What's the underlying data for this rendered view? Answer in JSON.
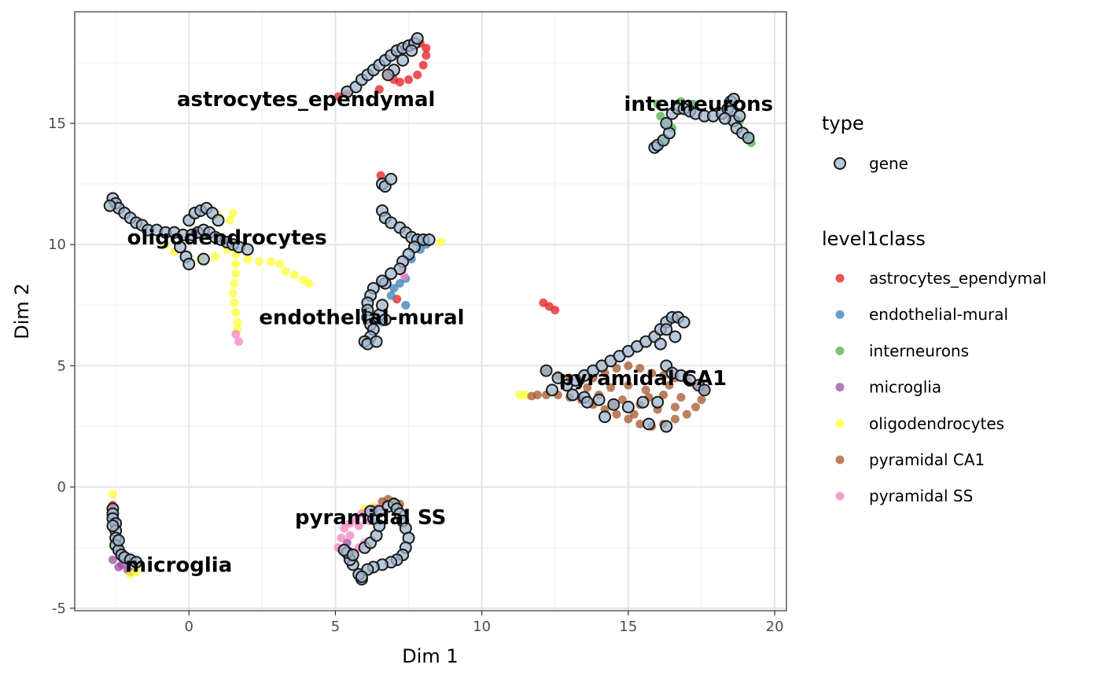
{
  "chart_data": {
    "type": "scatter",
    "xlabel": "Dim 1",
    "ylabel": "Dim 2",
    "xlim": [
      -3.9,
      20.4
    ],
    "ylim": [
      -5.1,
      19.6
    ],
    "x_ticks": [
      0,
      5,
      10,
      15,
      20
    ],
    "y_ticks": [
      -5,
      0,
      5,
      10,
      15
    ],
    "y_tick_labels": [
      "-5",
      "0",
      "5",
      "10",
      "15"
    ],
    "grid": true,
    "legend_position": "right",
    "legend": {
      "type_title": "type",
      "type_entries": [
        {
          "label": "gene",
          "color": "#9FB6CD"
        }
      ],
      "class_title": "level1class",
      "class_entries": [
        {
          "label": "astrocytes_ependymal",
          "color": "#E41A1C"
        },
        {
          "label": "endothelial-mural",
          "color": "#377EB8"
        },
        {
          "label": "interneurons",
          "color": "#4DAF4A"
        },
        {
          "label": "microglia",
          "color": "#984EA3"
        },
        {
          "label": "oligodendrocytes",
          "color": "#FFFF33"
        },
        {
          "label": "pyramidal CA1",
          "color": "#A65628"
        },
        {
          "label": "pyramidal SS",
          "color": "#F781BF"
        }
      ]
    },
    "cluster_labels": [
      {
        "text": "astrocytes_ependymal",
        "x": 4.0,
        "y": 16.0
      },
      {
        "text": "interneurons",
        "x": 17.4,
        "y": 15.8
      },
      {
        "text": "oligodendrocytes",
        "x": 1.3,
        "y": 10.3
      },
      {
        "text": "endothelial-mural",
        "x": 5.9,
        "y": 7.0
      },
      {
        "text": "pyramidal CA1",
        "x": 15.5,
        "y": 4.5
      },
      {
        "text": "pyramidal SS",
        "x": 6.2,
        "y": -1.25
      },
      {
        "text": "microglia",
        "x": -0.35,
        "y": -3.2
      }
    ],
    "cell_series": [
      {
        "name": "astrocytes_ependymal",
        "points": [
          [
            5.1,
            16.1
          ],
          [
            5.4,
            16.2
          ],
          [
            6.5,
            16.4
          ],
          [
            6.8,
            17.0
          ],
          [
            7.0,
            16.8
          ],
          [
            7.2,
            16.7
          ],
          [
            7.5,
            16.8
          ],
          [
            7.8,
            17.0
          ],
          [
            8.0,
            17.4
          ],
          [
            8.1,
            17.8
          ],
          [
            8.1,
            18.1
          ],
          [
            7.9,
            18.3
          ],
          [
            12.1,
            7.6
          ],
          [
            12.3,
            7.45
          ],
          [
            12.5,
            7.3
          ],
          [
            6.55,
            12.85
          ],
          [
            7.1,
            7.75
          ],
          [
            -2.6,
            -0.75
          ]
        ]
      },
      {
        "name": "endothelial-mural",
        "points": [
          [
            7.2,
            8.4
          ],
          [
            7.4,
            8.6
          ],
          [
            6.9,
            7.9
          ],
          [
            7.4,
            7.5
          ],
          [
            7.6,
            9.4
          ],
          [
            7.9,
            9.8
          ],
          [
            8.1,
            10.0
          ],
          [
            6.6,
            6.8
          ],
          [
            7.0,
            8.2
          ]
        ]
      },
      {
        "name": "interneurons",
        "points": [
          [
            16.0,
            15.8
          ],
          [
            16.1,
            15.3
          ],
          [
            16.3,
            15.0
          ],
          [
            16.5,
            14.8
          ],
          [
            16.8,
            15.9
          ],
          [
            17.2,
            15.8
          ],
          [
            18.8,
            15.1
          ],
          [
            19.1,
            14.4
          ],
          [
            19.2,
            14.2
          ],
          [
            16.2,
            14.3
          ]
        ]
      },
      {
        "name": "microglia",
        "points": [
          [
            -2.6,
            -3.0
          ],
          [
            -2.3,
            -3.2
          ],
          [
            -2.1,
            -3.4
          ],
          [
            -2.0,
            -3.5
          ],
          [
            -2.4,
            -3.3
          ],
          [
            5.4,
            -2.3
          ]
        ]
      },
      {
        "name": "oligodendrocytes",
        "points": [
          [
            1.6,
            9.6
          ],
          [
            1.6,
            9.2
          ],
          [
            1.6,
            8.8
          ],
          [
            1.55,
            8.4
          ],
          [
            1.5,
            8.0
          ],
          [
            1.55,
            7.6
          ],
          [
            1.6,
            7.2
          ],
          [
            1.65,
            6.8
          ],
          [
            1.65,
            6.5
          ],
          [
            2.0,
            9.4
          ],
          [
            2.4,
            9.3
          ],
          [
            2.8,
            9.3
          ],
          [
            3.1,
            9.2
          ],
          [
            3.3,
            8.9
          ],
          [
            3.6,
            8.75
          ],
          [
            3.9,
            8.55
          ],
          [
            4.1,
            8.4
          ],
          [
            1.3,
            9.8
          ],
          [
            1.0,
            11.2
          ],
          [
            1.4,
            11.0
          ],
          [
            1.5,
            11.3
          ],
          [
            -0.8,
            10.0
          ],
          [
            -0.5,
            9.7
          ],
          [
            0.4,
            9.4
          ],
          [
            0.9,
            9.5
          ],
          [
            8.6,
            10.1
          ],
          [
            11.3,
            3.8
          ],
          [
            11.5,
            3.8
          ],
          [
            -2.6,
            -0.3
          ],
          [
            -2.0,
            -3.6
          ],
          [
            -1.8,
            -3.5
          ],
          [
            6.0,
            -0.9
          ],
          [
            6.3,
            -0.8
          ]
        ]
      },
      {
        "name": "pyramidal CA1",
        "points": [
          [
            12.2,
            4.8
          ],
          [
            12.6,
            4.6
          ],
          [
            13.0,
            4.5
          ],
          [
            13.4,
            4.4
          ],
          [
            13.8,
            4.5
          ],
          [
            14.2,
            4.7
          ],
          [
            14.6,
            4.9
          ],
          [
            15.0,
            5.0
          ],
          [
            15.4,
            4.9
          ],
          [
            15.8,
            4.7
          ],
          [
            16.2,
            4.6
          ],
          [
            16.6,
            4.5
          ],
          [
            17.0,
            4.4
          ],
          [
            17.4,
            4.2
          ],
          [
            17.6,
            4.0
          ],
          [
            17.5,
            3.6
          ],
          [
            17.3,
            3.3
          ],
          [
            17.0,
            3.0
          ],
          [
            16.6,
            2.8
          ],
          [
            16.2,
            2.6
          ],
          [
            15.8,
            2.5
          ],
          [
            15.4,
            2.6
          ],
          [
            15.0,
            2.8
          ],
          [
            14.6,
            3.0
          ],
          [
            14.2,
            3.2
          ],
          [
            13.8,
            3.4
          ],
          [
            13.4,
            3.6
          ],
          [
            13.0,
            3.7
          ],
          [
            12.6,
            3.8
          ],
          [
            12.2,
            3.8
          ],
          [
            11.9,
            3.8
          ],
          [
            11.7,
            3.75
          ],
          [
            14.4,
            4.1
          ],
          [
            15.0,
            4.2
          ],
          [
            15.6,
            4.0
          ],
          [
            16.2,
            3.8
          ],
          [
            16.8,
            3.7
          ],
          [
            14.8,
            3.6
          ],
          [
            15.4,
            3.4
          ],
          [
            16.0,
            3.2
          ],
          [
            16.6,
            3.3
          ],
          [
            13.6,
            4.1
          ],
          [
            14.0,
            3.8
          ],
          [
            15.2,
            3.0
          ],
          [
            16.4,
            4.2
          ],
          [
            15.7,
            3.7
          ],
          [
            14.5,
            3.4
          ],
          [
            6.8,
            -0.5
          ],
          [
            7.0,
            -0.6
          ],
          [
            7.2,
            -0.7
          ],
          [
            6.6,
            -0.6
          ]
        ]
      },
      {
        "name": "pyramidal SS",
        "points": [
          [
            5.3,
            -1.7
          ],
          [
            5.5,
            -1.5
          ],
          [
            5.7,
            -1.3
          ],
          [
            5.9,
            -1.1
          ],
          [
            6.1,
            -1.0
          ],
          [
            6.3,
            -0.9
          ],
          [
            6.5,
            -0.85
          ],
          [
            5.2,
            -2.1
          ],
          [
            5.1,
            -2.5
          ],
          [
            5.4,
            -2.9
          ],
          [
            5.6,
            -2.7
          ],
          [
            5.8,
            -2.5
          ],
          [
            6.0,
            -2.3
          ],
          [
            5.5,
            -2.0
          ],
          [
            5.8,
            -1.6
          ],
          [
            6.2,
            -1.4
          ],
          [
            1.7,
            6.0
          ],
          [
            1.6,
            6.3
          ],
          [
            7.3,
            9.0
          ],
          [
            7.35,
            8.7
          ]
        ]
      }
    ],
    "gene_points": [
      [
        5.4,
        16.3
      ],
      [
        5.7,
        16.5
      ],
      [
        5.9,
        16.8
      ],
      [
        6.1,
        17.0
      ],
      [
        6.3,
        17.2
      ],
      [
        6.5,
        17.4
      ],
      [
        6.7,
        17.6
      ],
      [
        6.9,
        17.8
      ],
      [
        7.1,
        18.0
      ],
      [
        7.3,
        18.1
      ],
      [
        7.5,
        18.2
      ],
      [
        7.7,
        18.3
      ],
      [
        7.8,
        18.5
      ],
      [
        7.6,
        18.0
      ],
      [
        7.3,
        17.6
      ],
      [
        7.0,
        17.2
      ],
      [
        6.8,
        17.0
      ],
      [
        15.9,
        14.0
      ],
      [
        16.0,
        14.1
      ],
      [
        16.2,
        14.3
      ],
      [
        16.4,
        14.6
      ],
      [
        16.3,
        15.0
      ],
      [
        16.5,
        15.4
      ],
      [
        16.7,
        15.6
      ],
      [
        16.9,
        15.6
      ],
      [
        17.1,
        15.5
      ],
      [
        17.3,
        15.4
      ],
      [
        17.6,
        15.3
      ],
      [
        17.9,
        15.3
      ],
      [
        18.2,
        15.4
      ],
      [
        18.4,
        15.6
      ],
      [
        18.5,
        15.9
      ],
      [
        18.6,
        16.0
      ],
      [
        18.5,
        15.5
      ],
      [
        18.6,
        15.1
      ],
      [
        18.7,
        14.8
      ],
      [
        18.9,
        14.6
      ],
      [
        19.1,
        14.4
      ],
      [
        18.8,
        15.3
      ],
      [
        18.3,
        15.2
      ],
      [
        -2.6,
        11.9
      ],
      [
        -2.5,
        11.7
      ],
      [
        -2.4,
        11.5
      ],
      [
        -2.2,
        11.3
      ],
      [
        -2.0,
        11.1
      ],
      [
        -1.8,
        10.9
      ],
      [
        -1.6,
        10.8
      ],
      [
        -1.4,
        10.6
      ],
      [
        -1.1,
        10.6
      ],
      [
        -0.8,
        10.5
      ],
      [
        -0.5,
        10.5
      ],
      [
        -0.2,
        10.4
      ],
      [
        0.1,
        10.4
      ],
      [
        0.3,
        10.5
      ],
      [
        0.5,
        10.6
      ],
      [
        0.7,
        10.5
      ],
      [
        0.9,
        10.3
      ],
      [
        1.1,
        10.2
      ],
      [
        1.3,
        10.1
      ],
      [
        1.5,
        10.0
      ],
      [
        1.7,
        9.9
      ],
      [
        2.0,
        9.8
      ],
      [
        0.0,
        11.0
      ],
      [
        0.2,
        11.3
      ],
      [
        0.4,
        11.4
      ],
      [
        0.6,
        11.5
      ],
      [
        0.8,
        11.3
      ],
      [
        1.0,
        11.0
      ],
      [
        -0.1,
        9.5
      ],
      [
        0.0,
        9.2
      ],
      [
        -0.3,
        9.9
      ],
      [
        -2.7,
        11.6
      ],
      [
        0.5,
        9.4
      ],
      [
        6.6,
        12.5
      ],
      [
        6.7,
        12.4
      ],
      [
        6.9,
        12.7
      ],
      [
        6.6,
        11.4
      ],
      [
        6.7,
        11.1
      ],
      [
        6.9,
        10.9
      ],
      [
        7.2,
        10.7
      ],
      [
        7.4,
        10.5
      ],
      [
        7.6,
        10.3
      ],
      [
        7.8,
        10.2
      ],
      [
        8.0,
        10.2
      ],
      [
        8.2,
        10.2
      ],
      [
        7.7,
        9.9
      ],
      [
        7.5,
        9.6
      ],
      [
        7.3,
        9.3
      ],
      [
        7.2,
        9.0
      ],
      [
        6.9,
        8.8
      ],
      [
        6.7,
        8.4
      ],
      [
        6.6,
        8.5
      ],
      [
        6.3,
        8.2
      ],
      [
        6.2,
        7.9
      ],
      [
        6.1,
        7.6
      ],
      [
        6.1,
        7.3
      ],
      [
        6.1,
        7.0
      ],
      [
        6.2,
        6.7
      ],
      [
        6.3,
        6.5
      ],
      [
        6.2,
        6.2
      ],
      [
        6.0,
        6.0
      ],
      [
        6.1,
        5.9
      ],
      [
        6.4,
        6.0
      ],
      [
        6.5,
        7.1
      ],
      [
        6.6,
        7.5
      ],
      [
        6.7,
        6.9
      ],
      [
        12.2,
        4.8
      ],
      [
        12.6,
        4.5
      ],
      [
        12.9,
        4.2
      ],
      [
        13.2,
        4.4
      ],
      [
        13.5,
        4.6
      ],
      [
        13.8,
        4.8
      ],
      [
        14.1,
        5.0
      ],
      [
        14.4,
        5.2
      ],
      [
        14.7,
        5.4
      ],
      [
        15.0,
        5.6
      ],
      [
        15.3,
        5.8
      ],
      [
        15.6,
        6.0
      ],
      [
        15.9,
        6.2
      ],
      [
        16.1,
        6.5
      ],
      [
        16.3,
        6.8
      ],
      [
        16.5,
        7.0
      ],
      [
        16.7,
        7.0
      ],
      [
        16.9,
        6.8
      ],
      [
        16.6,
        6.2
      ],
      [
        16.3,
        6.5
      ],
      [
        16.1,
        5.9
      ],
      [
        16.3,
        5.0
      ],
      [
        16.5,
        4.7
      ],
      [
        16.8,
        4.6
      ],
      [
        17.1,
        4.4
      ],
      [
        17.4,
        4.2
      ],
      [
        17.6,
        4.0
      ],
      [
        13.1,
        3.8
      ],
      [
        13.5,
        3.7
      ],
      [
        14.0,
        3.6
      ],
      [
        14.5,
        3.4
      ],
      [
        15.0,
        3.3
      ],
      [
        15.5,
        3.5
      ],
      [
        16.3,
        2.5
      ],
      [
        15.7,
        2.6
      ],
      [
        14.2,
        2.9
      ],
      [
        16.0,
        3.5
      ],
      [
        13.6,
        3.5
      ],
      [
        12.4,
        4.0
      ],
      [
        -2.6,
        -0.9
      ],
      [
        -2.6,
        -1.1
      ],
      [
        -2.6,
        -1.3
      ],
      [
        -2.5,
        -1.5
      ],
      [
        -2.5,
        -1.8
      ],
      [
        -2.5,
        -2.1
      ],
      [
        -2.5,
        -2.4
      ],
      [
        -2.4,
        -2.6
      ],
      [
        -2.3,
        -2.8
      ],
      [
        -2.2,
        -2.9
      ],
      [
        -2.0,
        -3.0
      ],
      [
        -1.8,
        -3.1
      ],
      [
        -2.6,
        -1.6
      ],
      [
        -2.4,
        -2.2
      ],
      [
        5.9,
        -3.8
      ],
      [
        5.8,
        -3.6
      ],
      [
        5.6,
        -3.2
      ],
      [
        5.5,
        -3.0
      ],
      [
        5.4,
        -2.7
      ],
      [
        5.3,
        -2.6
      ],
      [
        5.6,
        -2.8
      ],
      [
        6.0,
        -2.5
      ],
      [
        6.2,
        -2.3
      ],
      [
        6.4,
        -2.0
      ],
      [
        6.5,
        -1.6
      ],
      [
        6.3,
        -1.3
      ],
      [
        6.2,
        -1.0
      ],
      [
        6.5,
        -1.0
      ],
      [
        6.8,
        -0.8
      ],
      [
        7.0,
        -0.7
      ],
      [
        7.1,
        -0.9
      ],
      [
        7.2,
        -1.1
      ],
      [
        7.3,
        -1.4
      ],
      [
        7.4,
        -1.7
      ],
      [
        7.5,
        -2.1
      ],
      [
        7.4,
        -2.5
      ],
      [
        7.3,
        -2.8
      ],
      [
        7.1,
        -3.0
      ],
      [
        6.9,
        -3.1
      ],
      [
        6.6,
        -3.2
      ],
      [
        6.3,
        -3.3
      ],
      [
        6.1,
        -3.4
      ],
      [
        5.9,
        -3.7
      ]
    ]
  }
}
